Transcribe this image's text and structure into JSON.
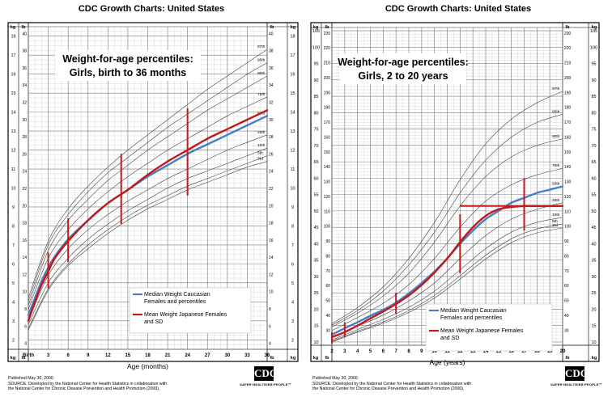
{
  "chart_data": [
    {
      "type": "line",
      "header": "CDC Growth Charts: United States",
      "title_line1": "Weight-for-age percentiles:",
      "title_line2": "Girls, birth to 36 months",
      "xlabel": "Age (months)",
      "x_ticks": [
        "Birth",
        "3",
        "6",
        "9",
        "12",
        "15",
        "18",
        "21",
        "24",
        "27",
        "30",
        "33",
        "36"
      ],
      "xlim": [
        0,
        36
      ],
      "ylim_kg": [
        1.5,
        18.5
      ],
      "kg_ticks": [
        2,
        3,
        4,
        5,
        6,
        7,
        8,
        9,
        10,
        11,
        12,
        13,
        14,
        15,
        16,
        17,
        18
      ],
      "lb_ticks": [
        4,
        6,
        8,
        10,
        12,
        14,
        16,
        18,
        20,
        22,
        24,
        26,
        28,
        30,
        32,
        34,
        36,
        38,
        40
      ],
      "unit_kg": "kg",
      "unit_lb": "lb",
      "percentile_labels": [
        "97th",
        "95th",
        "90th",
        "75th",
        "50th",
        "25th",
        "10th",
        "5th",
        "3rd"
      ],
      "percentiles": [
        {
          "name": "97th",
          "x": [
            0,
            3,
            6,
            9,
            12,
            15,
            18,
            21,
            24,
            27,
            30,
            33,
            36
          ],
          "y": [
            4.2,
            7.2,
            8.9,
            10.1,
            11.1,
            12.0,
            12.8,
            13.6,
            14.4,
            15.2,
            15.9,
            16.6,
            17.3
          ]
        },
        {
          "name": "95th",
          "x": [
            0,
            3,
            6,
            9,
            12,
            15,
            18,
            21,
            24,
            27,
            30,
            33,
            36
          ],
          "y": [
            4.0,
            7.0,
            8.6,
            9.8,
            10.8,
            11.6,
            12.4,
            13.2,
            13.9,
            14.6,
            15.3,
            16.0,
            16.6
          ]
        },
        {
          "name": "90th",
          "x": [
            0,
            3,
            6,
            9,
            12,
            15,
            18,
            21,
            24,
            27,
            30,
            33,
            36
          ],
          "y": [
            3.8,
            6.7,
            8.3,
            9.4,
            10.4,
            11.2,
            12.0,
            12.7,
            13.4,
            14.1,
            14.7,
            15.3,
            15.9
          ]
        },
        {
          "name": "75th",
          "x": [
            0,
            3,
            6,
            9,
            12,
            15,
            18,
            21,
            24,
            27,
            30,
            33,
            36
          ],
          "y": [
            3.6,
            6.3,
            7.8,
            8.9,
            9.8,
            10.6,
            11.3,
            12.0,
            12.6,
            13.2,
            13.8,
            14.3,
            14.8
          ]
        },
        {
          "name": "50th",
          "x": [
            0,
            3,
            6,
            9,
            12,
            15,
            18,
            21,
            24,
            27,
            30,
            33,
            36
          ],
          "y": [
            3.3,
            5.8,
            7.3,
            8.3,
            9.2,
            9.9,
            10.6,
            11.2,
            11.8,
            12.3,
            12.8,
            13.3,
            13.8
          ]
        },
        {
          "name": "25th",
          "x": [
            0,
            3,
            6,
            9,
            12,
            15,
            18,
            21,
            24,
            27,
            30,
            33,
            36
          ],
          "y": [
            3.0,
            5.4,
            6.8,
            7.8,
            8.6,
            9.3,
            9.9,
            10.5,
            11.0,
            11.5,
            12.0,
            12.4,
            12.8
          ]
        },
        {
          "name": "10th",
          "x": [
            0,
            3,
            6,
            9,
            12,
            15,
            18,
            21,
            24,
            27,
            30,
            33,
            36
          ],
          "y": [
            2.8,
            5.0,
            6.3,
            7.3,
            8.1,
            8.8,
            9.4,
            10.0,
            10.5,
            10.9,
            11.3,
            11.7,
            12.1
          ]
        },
        {
          "name": "5th",
          "x": [
            0,
            3,
            6,
            9,
            12,
            15,
            18,
            21,
            24,
            27,
            30,
            33,
            36
          ],
          "y": [
            2.6,
            4.7,
            6.0,
            7.0,
            7.8,
            8.5,
            9.1,
            9.6,
            10.1,
            10.5,
            10.9,
            11.3,
            11.7
          ]
        },
        {
          "name": "3rd",
          "x": [
            0,
            3,
            6,
            9,
            12,
            15,
            18,
            21,
            24,
            27,
            30,
            33,
            36
          ],
          "y": [
            2.5,
            4.6,
            5.9,
            6.8,
            7.6,
            8.3,
            8.9,
            9.4,
            9.9,
            10.3,
            10.7,
            11.1,
            11.4
          ]
        }
      ],
      "series": [
        {
          "name": "Median Weight Caucasian Females and percentiles",
          "color": "#4a7ec4",
          "x": [
            0,
            1,
            2,
            3,
            4,
            6,
            9,
            12,
            15,
            18,
            21,
            24,
            27,
            30,
            33,
            36
          ],
          "y": [
            3.3,
            4.2,
            5.1,
            5.8,
            6.4,
            7.3,
            8.3,
            9.2,
            9.9,
            10.6,
            11.2,
            11.8,
            12.3,
            12.8,
            13.3,
            13.8
          ]
        },
        {
          "name": "Mean Weight Japanese Females and SD",
          "color": "#c01a1a",
          "x": [
            0,
            1,
            2,
            3,
            4,
            6,
            9,
            12,
            15,
            18,
            21,
            24,
            27,
            30,
            33,
            36
          ],
          "y": [
            3.0,
            4.0,
            4.9,
            5.6,
            6.3,
            7.2,
            8.3,
            9.2,
            9.9,
            10.7,
            11.4,
            12.0,
            12.6,
            13.1,
            13.6,
            14.1
          ]
        }
      ],
      "error_bars": [
        {
          "x": 3,
          "low": 4.7,
          "high": 6.6
        },
        {
          "x": 6,
          "low": 6.1,
          "high": 8.4
        },
        {
          "x": 14,
          "low": 8.1,
          "high": 11.8
        },
        {
          "x": 24,
          "low": 9.6,
          "high": 14.2
        }
      ],
      "legend": [
        "Median Weight Caucasian Females and percentiles",
        "Mean Weight Japanese Females and SD"
      ],
      "legend_position": "bottom-right",
      "grid": true,
      "footer": [
        "Published May 30, 2000.",
        "SOURCE: Developed by the National Center for Health Statistics in collaboration with",
        "the National Center for Chronic Disease Prevention and Health Promotion (2000)."
      ]
    },
    {
      "type": "line",
      "header": "CDC Growth Charts: United States",
      "title_line1": "Weight-for-age percentiles:",
      "title_line2": "Girls, 2 to 20 years",
      "xlabel": "Age (years)",
      "x_ticks": [
        "2",
        "3",
        "4",
        "5",
        "6",
        "7",
        "8",
        "9",
        "10",
        "11",
        "12",
        "13",
        "14",
        "15",
        "16",
        "17",
        "18",
        "19",
        "20"
      ],
      "xlim": [
        2,
        20
      ],
      "ylim_kg": [
        9,
        106
      ],
      "kg_ticks": [
        10,
        15,
        20,
        25,
        30,
        35,
        40,
        45,
        50,
        55,
        60,
        65,
        70,
        75,
        80,
        85,
        90,
        95,
        100,
        105
      ],
      "lb_ticks": [
        30,
        40,
        50,
        60,
        70,
        80,
        90,
        100,
        110,
        120,
        130,
        140,
        150,
        160,
        170,
        180,
        190,
        200,
        210,
        220,
        230
      ],
      "unit_kg": "kg",
      "unit_lb": "lb",
      "percentile_labels": [
        "97th",
        "95th",
        "90th",
        "75th",
        "50th",
        "25th",
        "10th",
        "5th",
        "3rd"
      ],
      "percentiles": [
        {
          "name": "97th",
          "x": [
            2,
            4,
            6,
            8,
            10,
            12,
            14,
            16,
            18,
            20
          ],
          "y": [
            15.6,
            20.5,
            26.8,
            35.5,
            46.5,
            59.5,
            70.5,
            78.0,
            83.0,
            86.5
          ]
        },
        {
          "name": "95th",
          "x": [
            2,
            4,
            6,
            8,
            10,
            12,
            14,
            16,
            18,
            20
          ],
          "y": [
            15.1,
            19.6,
            25.5,
            33.5,
            43.5,
            55.5,
            65.5,
            72.5,
            77.0,
            79.5
          ]
        },
        {
          "name": "90th",
          "x": [
            2,
            4,
            6,
            8,
            10,
            12,
            14,
            16,
            18,
            20
          ],
          "y": [
            14.6,
            18.8,
            24.0,
            31.0,
            40.5,
            51.5,
            60.5,
            66.5,
            70.0,
            72.0
          ]
        },
        {
          "name": "75th",
          "x": [
            2,
            4,
            6,
            8,
            10,
            12,
            14,
            16,
            18,
            20
          ],
          "y": [
            13.5,
            17.5,
            21.8,
            27.5,
            35.5,
            45.0,
            53.0,
            58.0,
            61.0,
            63.0
          ]
        },
        {
          "name": "50th",
          "x": [
            2,
            4,
            6,
            8,
            10,
            12,
            14,
            16,
            18,
            20
          ],
          "y": [
            12.2,
            16.0,
            19.8,
            24.8,
            31.5,
            40.0,
            47.5,
            52.5,
            55.5,
            57.5
          ]
        },
        {
          "name": "25th",
          "x": [
            2,
            4,
            6,
            8,
            10,
            12,
            14,
            16,
            18,
            20
          ],
          "y": [
            11.3,
            14.8,
            18.2,
            22.5,
            28.0,
            35.5,
            42.5,
            47.5,
            50.5,
            52.5
          ]
        },
        {
          "name": "10th",
          "x": [
            2,
            4,
            6,
            8,
            10,
            12,
            14,
            16,
            18,
            20
          ],
          "y": [
            10.6,
            13.8,
            16.9,
            20.6,
            25.5,
            32.0,
            38.5,
            43.5,
            46.5,
            48.0
          ]
        },
        {
          "name": "5th",
          "x": [
            2,
            4,
            6,
            8,
            10,
            12,
            14,
            16,
            18,
            20
          ],
          "y": [
            10.2,
            13.3,
            16.1,
            19.6,
            24.2,
            30.2,
            36.5,
            41.5,
            44.5,
            46.0
          ]
        },
        {
          "name": "3rd",
          "x": [
            2,
            4,
            6,
            8,
            10,
            12,
            14,
            16,
            18,
            20
          ],
          "y": [
            10.0,
            13.0,
            15.7,
            19.0,
            23.4,
            29.2,
            35.3,
            40.3,
            43.3,
            44.8
          ]
        }
      ],
      "series": [
        {
          "name": "Median Weight Caucasian Females and percentiles",
          "color": "#4a7ec4",
          "x": [
            2,
            3,
            4,
            5,
            6,
            7,
            8,
            9,
            10,
            11,
            12,
            13,
            14,
            15,
            16,
            17,
            18,
            19,
            20
          ],
          "y": [
            12.2,
            14.2,
            16.0,
            18.0,
            19.8,
            22.0,
            24.8,
            28.0,
            31.5,
            35.5,
            40.0,
            44.0,
            47.5,
            50.0,
            52.5,
            54.0,
            55.5,
            56.5,
            57.5
          ]
        },
        {
          "name": "Mean Weight Japanese Females and SD",
          "color": "#c01a1a",
          "x": [
            2,
            3,
            4,
            5,
            6,
            7,
            8,
            9,
            10,
            11,
            12,
            13,
            14,
            15,
            16,
            17,
            18,
            19,
            20
          ],
          "y": [
            11.5,
            13.0,
            15.0,
            17.2,
            19.3,
            21.6,
            24.2,
            27.4,
            31.2,
            35.5,
            40.5,
            45.0,
            48.5,
            50.5,
            51.2,
            51.5,
            51.5,
            51.5,
            51.5
          ]
        }
      ],
      "error_bars": [
        {
          "x": 2,
          "low": 9.5,
          "high": 13.0
        },
        {
          "x": 3,
          "low": 11.5,
          "high": 16.0
        },
        {
          "x": 7,
          "low": 18.5,
          "high": 25.0
        },
        {
          "x": 12,
          "low": 31.0,
          "high": 49.0
        },
        {
          "x": 17,
          "low": 44.0,
          "high": 60.0
        }
      ],
      "error_bar_horizontal": {
        "y": 51.5,
        "x_from": 12.0,
        "x_to": 20.0
      },
      "legend": [
        "Median Weight Caucasian Females and percentiles",
        "Mean Weight Japanese Females and SD"
      ],
      "legend_position": "bottom-right",
      "grid": true,
      "footer": [
        "Published May 30, 2000.",
        "SOURCE: Developed by the National Center for Health Statistics in collaboration with",
        "the National Center for Chronic Disease Prevention and Health Promotion (2000)."
      ]
    }
  ],
  "logo": {
    "mark": "CDC",
    "tagline": "SAFER·HEALTHIER·PEOPLE™"
  }
}
